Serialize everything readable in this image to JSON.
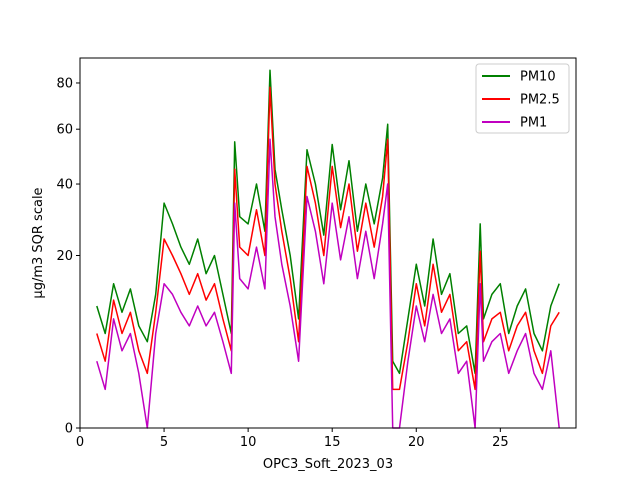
{
  "chart_data": {
    "type": "line",
    "title": "",
    "xlabel": "OPC3_Soft_2023_03",
    "ylabel": "µg/m3 SQR scale",
    "y_scale": "sqrt",
    "xlim": [
      0.0,
      29.5
    ],
    "ylim": [
      0,
      92
    ],
    "x_ticks": [
      0,
      5,
      10,
      15,
      20,
      25
    ],
    "y_ticks": [
      0,
      20,
      40,
      60,
      80
    ],
    "grid": false,
    "legend": "top-right",
    "series": [
      {
        "name": "PM10",
        "color": "#008000",
        "x": [
          1.0,
          1.5,
          2.0,
          2.5,
          3.0,
          3.5,
          4.0,
          4.5,
          5.0,
          5.5,
          6.0,
          6.5,
          7.0,
          7.5,
          8.0,
          8.5,
          9.0,
          9.2,
          9.5,
          10.0,
          10.5,
          11.0,
          11.3,
          11.6,
          12.0,
          12.5,
          13.0,
          13.5,
          14.0,
          14.5,
          15.0,
          15.5,
          16.0,
          16.5,
          17.0,
          17.5,
          18.0,
          18.3,
          18.6,
          19.0,
          19.5,
          20.0,
          20.5,
          21.0,
          21.5,
          22.0,
          22.5,
          23.0,
          23.5,
          23.8,
          24.0,
          24.5,
          25.0,
          25.5,
          26.0,
          26.5,
          27.0,
          27.5,
          28.0,
          28.5
        ],
        "values": [
          10,
          6,
          14,
          9,
          13,
          7,
          5,
          12,
          34,
          28,
          22,
          18,
          24,
          16,
          20,
          12,
          6,
          55,
          30,
          28,
          40,
          26,
          86,
          45,
          32,
          20,
          8,
          52,
          40,
          25,
          54,
          32,
          48,
          26,
          40,
          28,
          42,
          62,
          3,
          2,
          8,
          18,
          10,
          24,
          12,
          16,
          6,
          7,
          2,
          28,
          8,
          12,
          14,
          6,
          10,
          13,
          6,
          4,
          10,
          14
        ]
      },
      {
        "name": "PM2.5",
        "color": "#ff0000",
        "x": [
          1.0,
          1.5,
          2.0,
          2.5,
          3.0,
          3.5,
          4.0,
          4.5,
          5.0,
          5.5,
          6.0,
          6.5,
          7.0,
          7.5,
          8.0,
          8.5,
          9.0,
          9.2,
          9.5,
          10.0,
          10.5,
          11.0,
          11.3,
          11.6,
          12.0,
          12.5,
          13.0,
          13.5,
          14.0,
          14.5,
          15.0,
          15.5,
          16.0,
          16.5,
          17.0,
          17.5,
          18.0,
          18.3,
          18.6,
          19.0,
          19.5,
          20.0,
          20.5,
          21.0,
          21.5,
          22.0,
          22.5,
          23.0,
          23.5,
          23.8,
          24.0,
          24.5,
          25.0,
          25.5,
          26.0,
          26.5,
          27.0,
          27.5,
          28.0,
          28.5
        ],
        "values": [
          6,
          3,
          11,
          6,
          9,
          4,
          2,
          9,
          24,
          20,
          16,
          12,
          16,
          11,
          14,
          8,
          4,
          45,
          22,
          20,
          32,
          20,
          78,
          40,
          26,
          15,
          5,
          46,
          34,
          20,
          46,
          27,
          40,
          21,
          34,
          22,
          36,
          56,
          1,
          1,
          5,
          14,
          7,
          18,
          9,
          12,
          4,
          5,
          1,
          21,
          5,
          8,
          9,
          4,
          7,
          9,
          4,
          2,
          7,
          9
        ]
      },
      {
        "name": "PM1",
        "color": "#c000c0",
        "x": [
          1.0,
          1.5,
          2.0,
          2.5,
          3.0,
          3.5,
          4.0,
          4.5,
          5.0,
          5.5,
          6.0,
          6.5,
          7.0,
          7.5,
          8.0,
          8.5,
          9.0,
          9.2,
          9.5,
          10.0,
          10.5,
          11.0,
          11.3,
          11.6,
          12.0,
          12.5,
          13.0,
          13.5,
          14.0,
          14.5,
          15.0,
          15.5,
          16.0,
          16.5,
          17.0,
          17.5,
          18.0,
          18.3,
          18.6,
          19.0,
          19.5,
          20.0,
          20.5,
          21.0,
          21.5,
          22.0,
          22.5,
          23.0,
          23.5,
          23.8,
          24.0,
          24.5,
          25.0,
          25.5,
          26.0,
          26.5,
          27.0,
          27.5,
          28.0,
          28.5
        ],
        "values": [
          3,
          1,
          8,
          4,
          6,
          2,
          0,
          6,
          14,
          12,
          9,
          7,
          10,
          7,
          9,
          5,
          2,
          34,
          15,
          13,
          22,
          13,
          56,
          30,
          18,
          10,
          3,
          36,
          26,
          14,
          34,
          19,
          30,
          15,
          26,
          15,
          28,
          40,
          0,
          0,
          3,
          10,
          5,
          12,
          6,
          8,
          2,
          3,
          0,
          14,
          3,
          5,
          6,
          2,
          4,
          6,
          2,
          1,
          4,
          0
        ]
      }
    ]
  }
}
